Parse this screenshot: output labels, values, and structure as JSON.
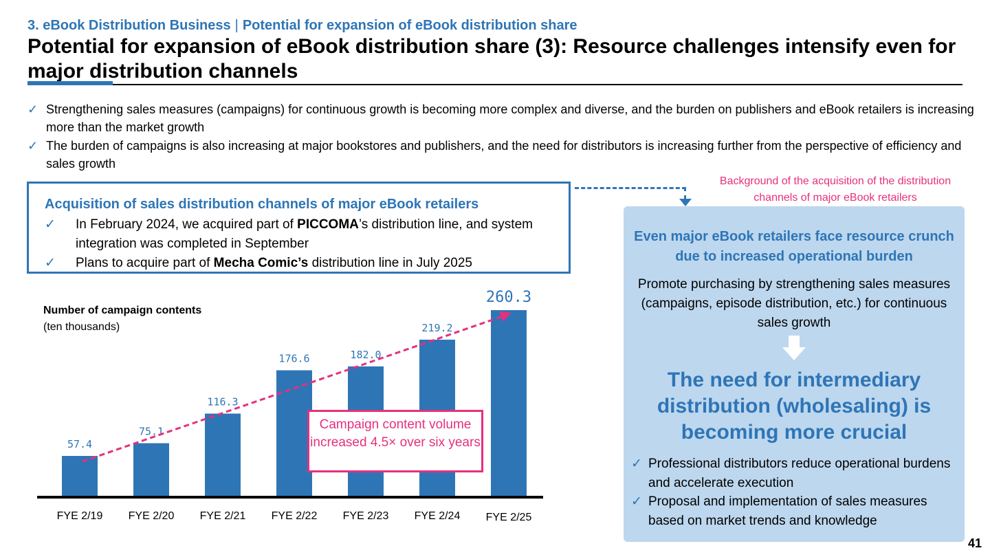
{
  "header": {
    "breadcrumb_section": "3. eBook Distribution Business",
    "breadcrumb_separator": "|",
    "breadcrumb_topic": "Potential for expansion of eBook distribution share",
    "title": "Potential for expansion of eBook distribution share (3): Resource challenges intensify even for major distribution channels"
  },
  "bullets": [
    "Strengthening sales measures (campaigns) for continuous growth is becoming more complex and diverse, and the burden on publishers and eBook retailers is increasing more than the market growth",
    "The burden of campaigns is also increasing at major bookstores and publishers, and the need for distributors is increasing further from the perspective of efficiency and sales growth"
  ],
  "check_glyph": "✓",
  "acquisition": {
    "title": "Acquisition of sales distribution channels of major eBook retailers",
    "item1_pre": "In February 2024, we acquired part of ",
    "item1_bold": "PICCOMA",
    "item1_post": "’s distribution line, and system integration was completed in September",
    "item2_pre": "Plans to acquire part of ",
    "item2_bold": "Mecha Comic’s",
    "item2_post": " distribution line in July 2025"
  },
  "background_note": "Background of the acquisition of the distribution channels of major eBook retailers",
  "right_panel": {
    "heading": "Even major eBook retailers face resource crunch due to increased operational burden",
    "body": "Promote purchasing by strengthening sales measures (campaigns, episode distribution, etc.) for continuous sales growth",
    "emphasis": "The need for intermediary distribution (wholesaling) is becoming more crucial",
    "items": [
      "Professional distributors reduce operational burdens and accelerate execution",
      "Proposal and implementation of sales measures based on market trends and knowledge"
    ]
  },
  "chart_labels": {
    "ylabel": "Number of campaign contents",
    "yunit": "(ten thousands)",
    "callout": "Campaign content volume increased 4.5× over six years"
  },
  "chart_data": {
    "type": "bar",
    "categories": [
      "FYE 2/19",
      "FYE 2/20",
      "FYE 2/21",
      "FYE 2/22",
      "FYE 2/23",
      "FYE 2/24",
      "FYE 2/25"
    ],
    "values": [
      57.4,
      75.1,
      116.3,
      176.6,
      182.0,
      219.2,
      260.3
    ],
    "value_labels": [
      "57.4",
      "75.1",
      "116.3",
      "176.6",
      "182.0",
      "219.2",
      "260.3"
    ],
    "ylabel": "Number of campaign contents",
    "unit": "(ten thousands)",
    "ylim": [
      0,
      260.3
    ],
    "bar_color": "#2e75b6",
    "trend_line_color": "#e6307c",
    "grid": false,
    "legend": "none"
  },
  "colors": {
    "accent_blue": "#2e75b6",
    "accent_pink": "#e6307c",
    "panel_blue": "#bdd7ee"
  },
  "page_number": "41"
}
